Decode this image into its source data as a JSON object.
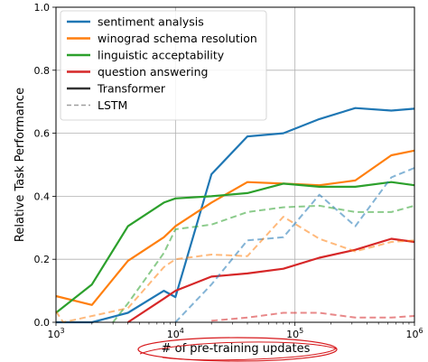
{
  "chart_data": {
    "type": "line",
    "title": "",
    "xlabel": "# of pre-training updates",
    "ylabel": "Relative Task Performance",
    "xscale": "log",
    "xlim": [
      1000,
      1000000
    ],
    "ylim": [
      0.0,
      1.0
    ],
    "grid": true,
    "legend_position": "top-left",
    "x_ticks": [
      {
        "value": 1000,
        "base": "10",
        "exp": "3"
      },
      {
        "value": 10000,
        "base": "10",
        "exp": "4"
      },
      {
        "value": 100000,
        "base": "10",
        "exp": "5"
      },
      {
        "value": 1000000,
        "base": "10",
        "exp": "6"
      }
    ],
    "y_ticks": [
      {
        "value": 0.0,
        "label": "0.0"
      },
      {
        "value": 0.2,
        "label": "0.2"
      },
      {
        "value": 0.4,
        "label": "0.4"
      },
      {
        "value": 0.6,
        "label": "0.6"
      },
      {
        "value": 0.8,
        "label": "0.8"
      },
      {
        "value": 1.0,
        "label": "1.0"
      }
    ],
    "legend": [
      {
        "label": "sentiment analysis",
        "color": "#1f77b4",
        "style": "solid"
      },
      {
        "label": "winograd schema resolution",
        "color": "#ff7f0e",
        "style": "solid"
      },
      {
        "label": "linguistic acceptability",
        "color": "#2ca02c",
        "style": "solid"
      },
      {
        "label": "question answering",
        "color": "#d62728",
        "style": "solid"
      },
      {
        "label": "Transformer",
        "color": "#333333",
        "style": "solid"
      },
      {
        "label": "LSTM",
        "color": "#888888",
        "style": "dashed"
      }
    ],
    "series": [
      {
        "name": "sentiment analysis",
        "model": "Transformer",
        "color": "#1f77b4",
        "dashed": false,
        "x": [
          1000,
          2000,
          4000,
          8000,
          10000,
          20000,
          40000,
          80000,
          160000,
          320000,
          640000,
          1000000
        ],
        "y": [
          0.0,
          0.0,
          0.03,
          0.1,
          0.08,
          0.47,
          0.59,
          0.6,
          0.645,
          0.68,
          0.672,
          0.678
        ]
      },
      {
        "name": "winograd schema resolution",
        "model": "Transformer",
        "color": "#ff7f0e",
        "dashed": false,
        "x": [
          1000,
          2000,
          4000,
          8000,
          10000,
          20000,
          40000,
          80000,
          160000,
          320000,
          640000,
          1000000
        ],
        "y": [
          0.083,
          0.055,
          0.195,
          0.27,
          0.305,
          0.38,
          0.445,
          0.44,
          0.435,
          0.45,
          0.53,
          0.545
        ]
      },
      {
        "name": "linguistic acceptability",
        "model": "Transformer",
        "color": "#2ca02c",
        "dashed": false,
        "x": [
          1000,
          2000,
          4000,
          8000,
          10000,
          20000,
          40000,
          80000,
          160000,
          320000,
          640000,
          1000000
        ],
        "y": [
          0.03,
          0.12,
          0.305,
          0.38,
          0.393,
          0.4,
          0.41,
          0.44,
          0.43,
          0.43,
          0.445,
          0.435
        ]
      },
      {
        "name": "question answering",
        "model": "Transformer",
        "color": "#d62728",
        "dashed": false,
        "x": [
          4000,
          8000,
          10000,
          20000,
          40000,
          80000,
          160000,
          320000,
          640000,
          1000000
        ],
        "y": [
          0.0,
          0.075,
          0.1,
          0.145,
          0.155,
          0.17,
          0.205,
          0.23,
          0.265,
          0.255
        ]
      },
      {
        "name": "sentiment analysis",
        "model": "LSTM",
        "color": "#1f77b4",
        "dashed": true,
        "x": [
          10000,
          20000,
          40000,
          80000,
          160000,
          320000,
          640000,
          1000000
        ],
        "y": [
          0.0,
          0.12,
          0.26,
          0.27,
          0.405,
          0.305,
          0.46,
          0.49
        ]
      },
      {
        "name": "winograd schema resolution",
        "model": "LSTM",
        "color": "#ff7f0e",
        "dashed": true,
        "x": [
          1000,
          1150,
          4000,
          8000,
          10000,
          20000,
          40000,
          80000,
          160000,
          320000,
          640000,
          1000000
        ],
        "y": [
          0.035,
          0.0,
          0.045,
          0.175,
          0.2,
          0.215,
          0.21,
          0.335,
          0.265,
          0.225,
          0.255,
          0.26
        ]
      },
      {
        "name": "linguistic acceptability",
        "model": "LSTM",
        "color": "#2ca02c",
        "dashed": true,
        "x": [
          3000,
          4000,
          8000,
          10000,
          20000,
          40000,
          80000,
          160000,
          320000,
          640000,
          1000000
        ],
        "y": [
          0.0,
          0.06,
          0.22,
          0.295,
          0.31,
          0.35,
          0.365,
          0.37,
          0.35,
          0.35,
          0.37
        ]
      },
      {
        "name": "question answering",
        "model": "LSTM",
        "color": "#d62728",
        "dashed": true,
        "x": [
          20000,
          40000,
          80000,
          160000,
          320000,
          640000,
          1000000
        ],
        "y": [
          0.005,
          0.015,
          0.03,
          0.03,
          0.015,
          0.015,
          0.02
        ]
      }
    ]
  }
}
